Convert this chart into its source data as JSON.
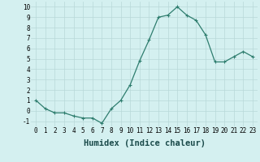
{
  "x": [
    0,
    1,
    2,
    3,
    4,
    5,
    6,
    7,
    8,
    9,
    10,
    11,
    12,
    13,
    14,
    15,
    16,
    17,
    18,
    19,
    20,
    21,
    22,
    23
  ],
  "y": [
    1.0,
    0.2,
    -0.2,
    -0.2,
    -0.5,
    -0.7,
    -0.7,
    -1.2,
    0.2,
    1.0,
    2.5,
    4.8,
    6.8,
    9.0,
    9.2,
    10.0,
    9.2,
    8.7,
    7.3,
    4.7,
    4.7,
    5.2,
    5.7,
    5.2
  ],
  "line_color": "#2e7d6e",
  "marker": "+",
  "marker_size": 3,
  "line_width": 0.9,
  "marker_edge_width": 0.8,
  "xlabel": "Humidex (Indice chaleur)",
  "xlim": [
    -0.5,
    23.5
  ],
  "ylim": [
    -1.5,
    10.5
  ],
  "xtick_labels": [
    "0",
    "1",
    "2",
    "3",
    "4",
    "5",
    "6",
    "7",
    "8",
    "9",
    "10",
    "11",
    "12",
    "13",
    "14",
    "15",
    "16",
    "17",
    "18",
    "19",
    "20",
    "21",
    "22",
    "23"
  ],
  "ytick_values": [
    -1,
    0,
    1,
    2,
    3,
    4,
    5,
    6,
    7,
    8,
    9,
    10
  ],
  "background_color": "#d4f0f0",
  "grid_color": "#b8d8d8",
  "tick_fontsize": 5.5,
  "xlabel_fontsize": 7.5
}
